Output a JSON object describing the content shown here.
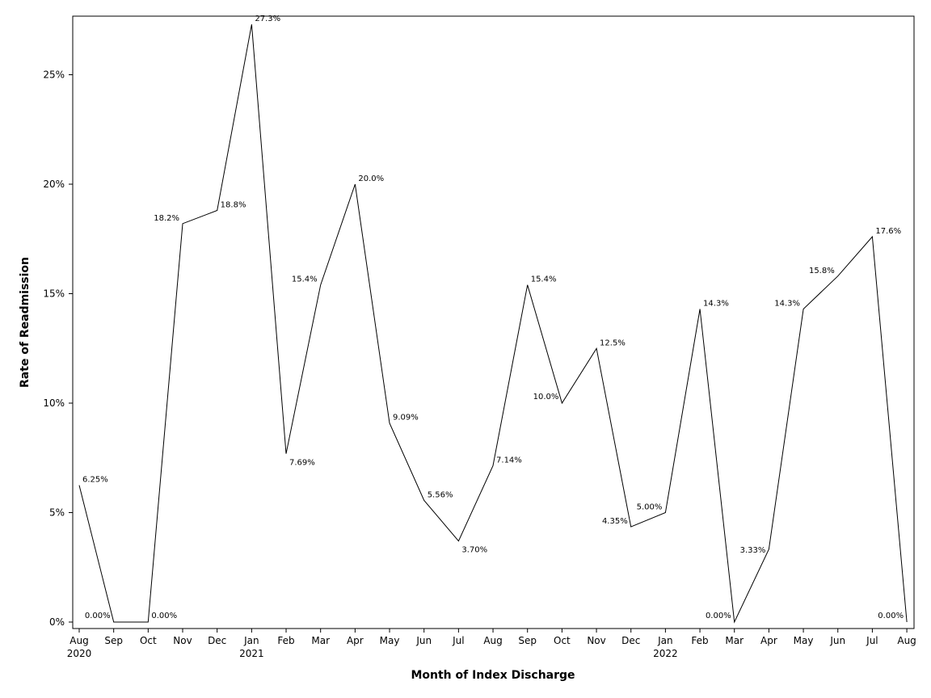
{
  "chart_data": {
    "type": "line",
    "xlabel": "Month of Index Discharge",
    "ylabel": "Rate of Readmission",
    "ylim": [
      0,
      27.3
    ],
    "yticks": [
      0,
      5,
      10,
      15,
      20,
      25
    ],
    "ytick_labels": [
      "0%",
      "5%",
      "10%",
      "15%",
      "20%",
      "25%"
    ],
    "grid": false,
    "x": [
      "Aug",
      "Sep",
      "Oct",
      "Nov",
      "Dec",
      "Jan",
      "Feb",
      "Mar",
      "Apr",
      "May",
      "Jun",
      "Jul",
      "Aug",
      "Sep",
      "Oct",
      "Nov",
      "Dec",
      "Jan",
      "Feb",
      "Mar",
      "Apr",
      "May",
      "Jun",
      "Jul",
      "Aug"
    ],
    "x_year_labels": [
      "2020",
      "",
      "",
      "",
      "",
      "2021",
      "",
      "",
      "",
      "",
      "",
      "",
      "",
      "",
      "",
      "",
      "",
      "2022",
      "",
      "",
      "",
      "",
      "",
      "",
      ""
    ],
    "series": [
      {
        "values": [
          6.25,
          0.0,
          0.0,
          18.2,
          18.8,
          27.3,
          7.69,
          15.4,
          20.0,
          9.09,
          5.56,
          3.7,
          7.14,
          15.4,
          10.0,
          12.5,
          4.35,
          5.0,
          14.3,
          0.0,
          3.33,
          14.3,
          15.8,
          17.6,
          0.0
        ],
        "labels": [
          "6.25%",
          "0.00%",
          "0.00%",
          "18.2%",
          "18.8%",
          "27.3%",
          "7.69%",
          "15.4%",
          "20.0%",
          "9.09%",
          "5.56%",
          "3.70%",
          "7.14%",
          "15.4%",
          "10.0%",
          "12.5%",
          "4.35%",
          "5.00%",
          "14.3%",
          "0.00%",
          "3.33%",
          "14.3%",
          "15.8%",
          "17.6%",
          "0.00%"
        ],
        "color": "#000000"
      }
    ]
  }
}
